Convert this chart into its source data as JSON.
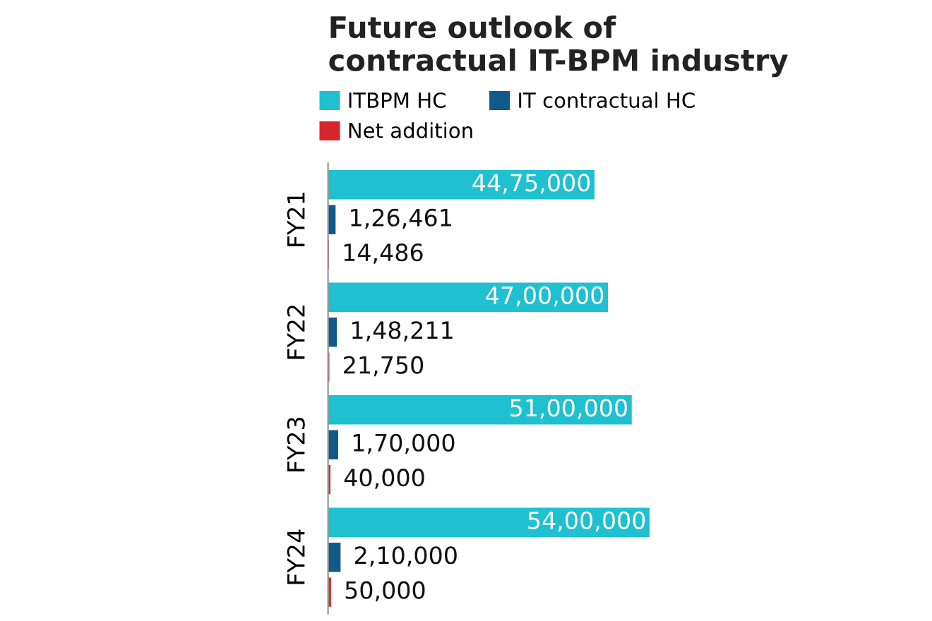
{
  "chart_data": {
    "type": "bar",
    "orientation": "horizontal",
    "title": "Future outlook of\ncontractual IT-BPM industry",
    "categories": [
      "FY21",
      "FY22",
      "FY23",
      "FY24"
    ],
    "series": [
      {
        "name": "ITBPM HC",
        "color": "#1fc0cf",
        "values": [
          4475000,
          4700000,
          5100000,
          5400000
        ],
        "value_labels": [
          "44,75,000",
          "47,00,000",
          "51,00,000",
          "54,00,000"
        ]
      },
      {
        "name": "IT contractual HC",
        "color": "#0f5a8a",
        "values": [
          126461,
          148211,
          170000,
          210000
        ],
        "value_labels": [
          "1,26,461",
          "1,48,211",
          "1,70,000",
          "2,10,000"
        ]
      },
      {
        "name": "Net addition",
        "color": "#d7262c",
        "values": [
          14486,
          21750,
          40000,
          50000
        ],
        "value_labels": [
          "14,486",
          "21,750",
          "40,000",
          "50,000"
        ]
      }
    ],
    "legend": "top",
    "grid": false,
    "tick_labels": "y"
  }
}
